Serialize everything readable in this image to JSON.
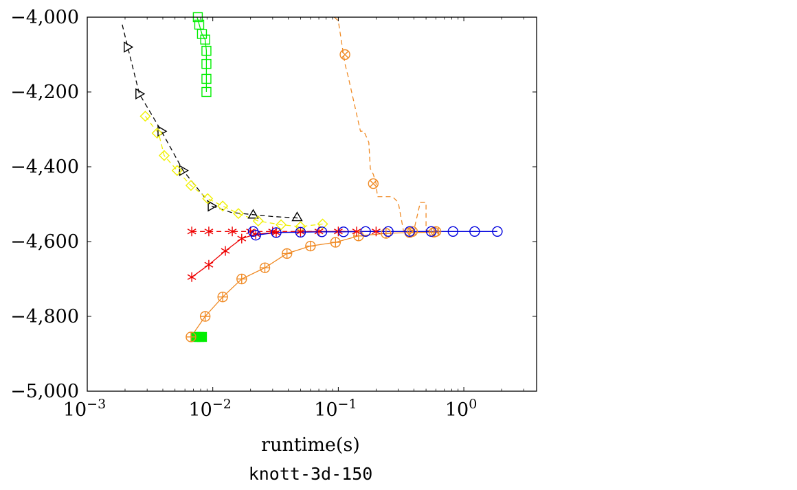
{
  "chart_data": {
    "type": "line",
    "title": "knott-3d-150",
    "xlabel": "runtime(s)",
    "ylabel": "",
    "x_scale": "log",
    "xlim": [
      0.001,
      3.8
    ],
    "ylim": [
      -5000,
      -4000
    ],
    "grid": false,
    "x_ticks": [
      {
        "value": 0.001,
        "base": "10",
        "exp": "−3"
      },
      {
        "value": 0.01,
        "base": "10",
        "exp": "−2"
      },
      {
        "value": 0.1,
        "base": "10",
        "exp": "−1"
      },
      {
        "value": 1,
        "base": "10",
        "exp": "0"
      }
    ],
    "y_ticks": [
      {
        "value": -4000,
        "label": "−4,000"
      },
      {
        "value": -4200,
        "label": "−4,200"
      },
      {
        "value": -4400,
        "label": "−4,400"
      },
      {
        "value": -4600,
        "label": "−4,600"
      },
      {
        "value": -4800,
        "label": "−4,800"
      },
      {
        "value": -5000,
        "label": "−5,000"
      }
    ],
    "series": [
      {
        "color": "#000000",
        "dash": "dashed",
        "marker": "triangle-right",
        "x": [
          0.0019,
          0.0021,
          0.0026,
          0.0039,
          0.0058,
          0.0098
        ],
        "y": [
          -4020,
          -4080,
          -4205,
          -4305,
          -4410,
          -4505
        ],
        "markers": [
          [
            0.0021,
            -4080
          ],
          [
            0.0026,
            -4205
          ],
          [
            0.0039,
            -4305
          ],
          [
            0.0058,
            -4410
          ],
          [
            0.0098,
            -4505
          ]
        ]
      },
      {
        "color": "#000000",
        "dash": "dashed",
        "marker": "triangle-up",
        "x": [
          0.0098,
          0.014,
          0.021,
          0.03,
          0.048
        ],
        "y": [
          -4505,
          -4522,
          -4528,
          -4533,
          -4537
        ],
        "markers": [
          [
            0.021,
            -4528
          ],
          [
            0.047,
            -4535
          ]
        ]
      },
      {
        "color": "#f0f000",
        "dash": "dashed",
        "marker": "diamond",
        "x": [
          0.0029,
          0.0033,
          0.0037,
          0.0041,
          0.0052,
          0.0067,
          0.0091,
          0.012,
          0.016,
          0.023,
          0.035,
          0.05,
          0.075
        ],
        "y": [
          -4265,
          -4290,
          -4310,
          -4370,
          -4410,
          -4450,
          -4485,
          -4505,
          -4525,
          -4545,
          -4555,
          -4560,
          -4553
        ],
        "markers": [
          [
            0.0029,
            -4265
          ],
          [
            0.0036,
            -4310
          ],
          [
            0.0041,
            -4370
          ],
          [
            0.0052,
            -4410
          ],
          [
            0.0067,
            -4450
          ],
          [
            0.0091,
            -4485
          ],
          [
            0.012,
            -4505
          ],
          [
            0.016,
            -4525
          ],
          [
            0.023,
            -4545
          ],
          [
            0.035,
            -4555
          ],
          [
            0.05,
            -4560
          ],
          [
            0.075,
            -4553
          ]
        ]
      },
      {
        "color": "#00ee00",
        "dash": "solid",
        "marker": "square",
        "x": [
          0.0075,
          0.0078,
          0.0082,
          0.0087,
          0.0089,
          0.0089,
          0.0089,
          0.0089
        ],
        "y": [
          -4000,
          -4020,
          -4045,
          -4060,
          -4090,
          -4125,
          -4165,
          -4200
        ],
        "markers": [
          [
            0.0076,
            -4000
          ],
          [
            0.0078,
            -4020
          ],
          [
            0.0082,
            -4045
          ],
          [
            0.0087,
            -4060
          ],
          [
            0.0089,
            -4090
          ],
          [
            0.0089,
            -4125
          ],
          [
            0.0089,
            -4165
          ],
          [
            0.0089,
            -4200
          ]
        ]
      },
      {
        "color": "#00ee00",
        "dash": "solid",
        "marker": "square-filled",
        "x": [
          0.0073,
          0.0081
        ],
        "y": [
          -4855,
          -4855
        ],
        "markers": [
          [
            0.0073,
            -4855
          ],
          [
            0.0078,
            -4855
          ],
          [
            0.0082,
            -4855
          ]
        ]
      },
      {
        "color": "#f08a24",
        "dash": "dashed",
        "marker": "circle-x",
        "x": [
          0.093,
          0.1,
          0.11,
          0.113,
          0.12,
          0.15,
          0.16,
          0.175,
          0.18,
          0.19,
          0.2,
          0.205,
          0.27,
          0.3,
          0.33,
          0.4,
          0.45,
          0.5,
          0.5,
          0.55,
          0.6
        ],
        "y": [
          -4000,
          -4010,
          -4100,
          -4125,
          -4160,
          -4305,
          -4305,
          -4335,
          -4405,
          -4420,
          -4445,
          -4480,
          -4480,
          -4495,
          -4570,
          -4570,
          -4495,
          -4495,
          -4570,
          -4572,
          -4573
        ],
        "markers": [
          [
            0.113,
            -4100
          ],
          [
            0.19,
            -4445
          ],
          [
            0.39,
            -4573
          ],
          [
            0.6,
            -4573
          ]
        ]
      },
      {
        "color": "#f08a24",
        "dash": "solid",
        "marker": "circle-plus",
        "x": [
          0.0067,
          0.0087,
          0.012,
          0.017,
          0.026,
          0.039,
          0.06,
          0.095,
          0.145,
          0.24,
          0.37,
          0.58
        ],
        "y": [
          -4855,
          -4800,
          -4748,
          -4700,
          -4670,
          -4632,
          -4612,
          -4602,
          -4585,
          -4578,
          -4576,
          -4575
        ],
        "markers": [
          [
            0.0067,
            -4855
          ],
          [
            0.0087,
            -4800
          ],
          [
            0.012,
            -4748
          ],
          [
            0.017,
            -4700
          ],
          [
            0.026,
            -4670
          ],
          [
            0.039,
            -4632
          ],
          [
            0.06,
            -4612
          ],
          [
            0.095,
            -4602
          ],
          [
            0.145,
            -4585
          ],
          [
            0.24,
            -4578
          ],
          [
            0.37,
            -4576
          ],
          [
            0.58,
            -4575
          ]
        ]
      },
      {
        "color": "#ee0000",
        "dash": "dashed",
        "marker": "asterisk",
        "x": [
          0.0068,
          0.2
        ],
        "y": [
          -4573,
          -4573
        ],
        "markers": [
          [
            0.0068,
            -4573
          ],
          [
            0.0093,
            -4573
          ],
          [
            0.0143,
            -4573
          ],
          [
            0.02,
            -4573
          ],
          [
            0.03,
            -4573
          ]
        ]
      },
      {
        "color": "#ee0000",
        "dash": "solid",
        "marker": "asterisk",
        "x": [
          0.0068,
          0.0093,
          0.0126,
          0.017,
          0.022,
          0.032,
          0.05,
          0.07,
          0.1,
          0.14,
          0.2
        ],
        "y": [
          -4695,
          -4662,
          -4625,
          -4592,
          -4580,
          -4576,
          -4574,
          -4573,
          -4573,
          -4573,
          -4573
        ],
        "markers": [
          [
            0.0068,
            -4695
          ],
          [
            0.0093,
            -4662
          ],
          [
            0.0126,
            -4625
          ],
          [
            0.017,
            -4592
          ],
          [
            0.022,
            -4580
          ],
          [
            0.032,
            -4576
          ],
          [
            0.05,
            -4574
          ],
          [
            0.07,
            -4573
          ],
          [
            0.1,
            -4573
          ],
          [
            0.14,
            -4573
          ],
          [
            0.2,
            -4573
          ]
        ]
      },
      {
        "color": "#0000dd",
        "dash": "solid",
        "marker": "circle",
        "x": [
          0.021,
          0.022,
          0.032,
          0.05,
          0.074,
          0.11,
          0.165,
          0.25,
          0.37,
          0.55,
          0.82,
          1.22,
          1.85
        ],
        "y": [
          -4578,
          -4583,
          -4576,
          -4575,
          -4574,
          -4574,
          -4573,
          -4573,
          -4573,
          -4573,
          -4573,
          -4573,
          -4573
        ],
        "markers": [
          [
            0.021,
            -4573
          ],
          [
            0.022,
            -4583
          ],
          [
            0.032,
            -4576
          ],
          [
            0.05,
            -4575
          ],
          [
            0.074,
            -4574
          ],
          [
            0.11,
            -4574
          ],
          [
            0.165,
            -4573
          ],
          [
            0.25,
            -4573
          ],
          [
            0.37,
            -4573
          ],
          [
            0.55,
            -4573
          ],
          [
            0.82,
            -4573
          ],
          [
            1.22,
            -4573
          ],
          [
            1.85,
            -4573
          ]
        ]
      }
    ]
  }
}
